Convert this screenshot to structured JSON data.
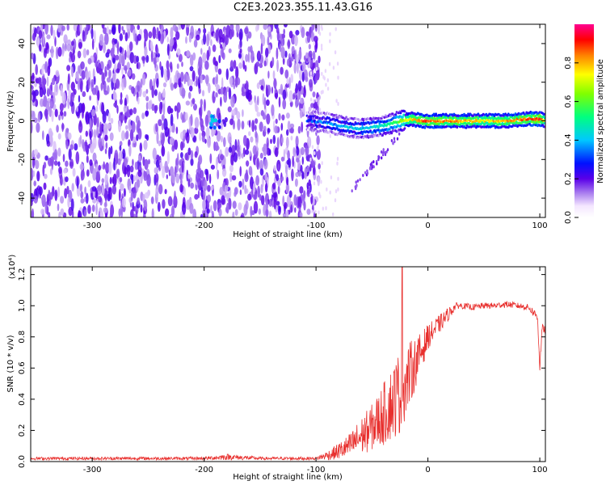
{
  "title": "C2E3.2023.355.11.43.G16",
  "chart_data": [
    {
      "type": "heatmap",
      "xlabel": "Height of straight line (km)",
      "ylabel": "Frequency (Hz)",
      "xlim": [
        -355,
        105
      ],
      "ylim": [
        -50,
        50
      ],
      "x_ticks": [
        -300,
        -200,
        -100,
        0,
        100
      ],
      "y_ticks": [
        -40,
        -20,
        0,
        20,
        40
      ],
      "colorbar": {
        "label": "Normalized spectral amplitude",
        "range": [
          0.0,
          1.0
        ],
        "ticks": [
          "0.0",
          "0.2",
          "0.4",
          "0.6",
          "0.8"
        ],
        "colormap": "rainbow (white → purple → blue → cyan → green → yellow → red → magenta)"
      },
      "description_regions": [
        {
          "x_range": [
            -355,
            -105
          ],
          "content": "broadband noise across all frequencies, amplitude ~0.05–0.15"
        },
        {
          "x_range": [
            -105,
            105
          ],
          "content": "narrow band near 0 Hz, amplitude rising from ~0.3 to ~0.9; weak trail from -20 to -45 Hz near x=-70 to -25"
        }
      ],
      "ridge": {
        "x": [
          -105,
          -90,
          -75,
          -60,
          -45,
          -35,
          -25,
          -15,
          -5,
          10,
          30,
          50,
          70,
          90,
          100,
          105
        ],
        "freq": [
          0,
          -1,
          -3,
          -4,
          -3,
          -2,
          0,
          1,
          0,
          0,
          0,
          0,
          0,
          1,
          1,
          0
        ],
        "amplitude": [
          0.3,
          0.35,
          0.4,
          0.4,
          0.45,
          0.5,
          0.6,
          0.75,
          0.85,
          0.85,
          0.8,
          0.75,
          0.8,
          0.85,
          0.9,
          0.7
        ]
      }
    },
    {
      "type": "line",
      "xlabel": "Height of straight line (km)",
      "ylabel": "SNR (10 * v/v)",
      "y_multiplier": "(x10⁴)",
      "xlim": [
        -355,
        105
      ],
      "ylim": [
        0.0,
        1.25
      ],
      "x_ticks": [
        -300,
        -200,
        -100,
        0,
        100
      ],
      "y_ticks": [
        0.0,
        0.2,
        0.4,
        0.6,
        0.8,
        1.0,
        1.2
      ],
      "color": "#e8302e",
      "series": [
        {
          "x": [
            -355,
            -300,
            -250,
            -200,
            -180,
            -150,
            -120,
            -100,
            -85,
            -70,
            -60,
            -50,
            -40,
            -30,
            -25,
            -20,
            -15,
            -10,
            -5,
            0,
            10,
            20,
            25,
            30,
            40,
            50,
            60,
            70,
            80,
            90,
            95,
            98,
            100,
            102,
            105
          ],
          "y": [
            0.02,
            0.02,
            0.02,
            0.02,
            0.03,
            0.02,
            0.02,
            0.02,
            0.05,
            0.1,
            0.16,
            0.22,
            0.3,
            0.4,
            0.45,
            0.5,
            0.58,
            0.65,
            0.72,
            0.8,
            0.88,
            0.96,
            1.0,
            1.0,
            0.99,
            1.0,
            1.0,
            1.01,
            1.0,
            0.99,
            0.95,
            0.93,
            0.6,
            0.85,
            0.85
          ],
          "noise_amplitude": [
            0.01,
            0.01,
            0.01,
            0.01,
            0.02,
            0.01,
            0.01,
            0.01,
            0.04,
            0.08,
            0.12,
            0.15,
            0.2,
            0.25,
            0.28,
            0.22,
            0.2,
            0.15,
            0.12,
            0.08,
            0.06,
            0.04,
            0.02,
            0.02,
            0.02,
            0.02,
            0.02,
            0.02,
            0.02,
            0.02,
            0.03,
            0.03,
            0.03,
            0.03,
            0.03
          ]
        }
      ],
      "annotations": [
        {
          "x": -23,
          "y": 1.25,
          "note": "spike reaching top of axis"
        }
      ]
    }
  ]
}
